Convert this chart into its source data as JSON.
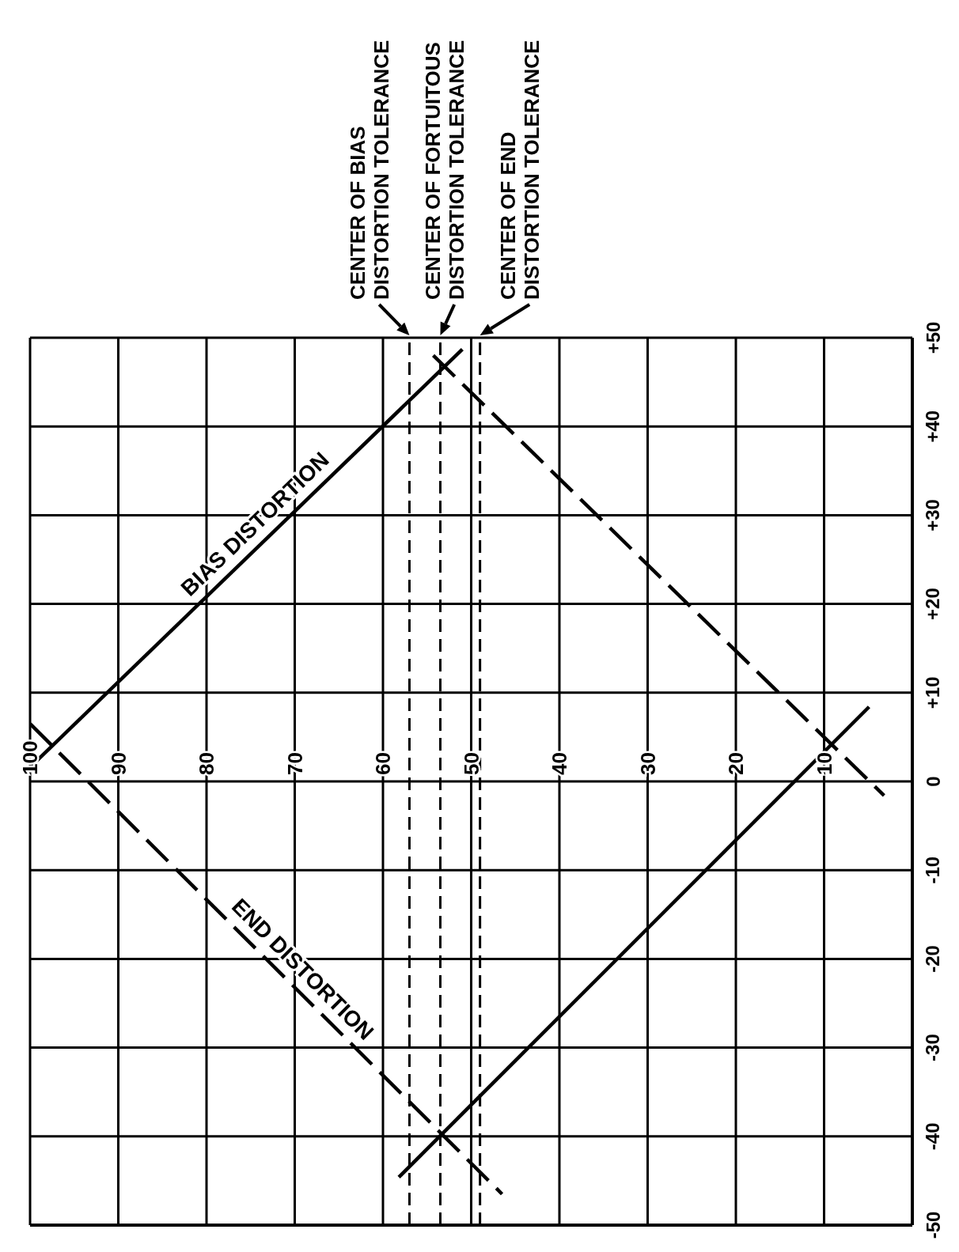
{
  "chart_data": {
    "type": "line",
    "xlim": [
      100,
      0
    ],
    "ylim": [
      -50,
      50
    ],
    "xticks": [
      100,
      90,
      80,
      70,
      60,
      50,
      40,
      30,
      20,
      10,
      {
        "value": 0,
        "label": null
      }
    ],
    "yticks": [
      -50,
      -40,
      -30,
      -20,
      -10,
      0,
      {
        "value": 10,
        "label": "+10"
      },
      {
        "value": 20,
        "label": "+20"
      },
      {
        "value": 30,
        "label": "+30"
      },
      {
        "value": 40,
        "label": "+40"
      },
      {
        "value": 50,
        "label": "+50"
      }
    ],
    "grid": true,
    "series": [
      {
        "name": "BIAS DISTORTION",
        "color": "#000000",
        "line_style": "solid",
        "x": [
          100,
          51
        ],
        "values": [
          1.6,
          48.7
        ]
      },
      {
        "name": "END DISTORTION",
        "color": "#000000",
        "line_style": "dashed",
        "x": [
          100,
          46.5
        ],
        "values": [
          6.5,
          -46.5
        ]
      },
      {
        "color": "#000000",
        "line_style": "solid",
        "x": [
          58.2,
          4.9
        ],
        "values": [
          -44.6,
          8.4
        ]
      },
      {
        "color": "#000000",
        "line_style": "dashed",
        "x": [
          54.3,
          3.2
        ],
        "values": [
          48,
          -1.6
        ]
      }
    ],
    "ref_lines": [
      {
        "axis": "x",
        "value": 57,
        "label": "CENTER OF BIAS DISTORTION TOLERANCE",
        "line_style": "dashed",
        "color": "#000000"
      },
      {
        "axis": "x",
        "value": 53.5,
        "label": "CENTER OF FORTUITOUS DISTORTION TOLERANCE",
        "line_style": "dashed",
        "color": "#000000"
      },
      {
        "axis": "x",
        "value": 49,
        "label": "CENTER OF END DISTORTION TOLERANCE",
        "line_style": "dashed",
        "color": "#000000"
      }
    ]
  }
}
